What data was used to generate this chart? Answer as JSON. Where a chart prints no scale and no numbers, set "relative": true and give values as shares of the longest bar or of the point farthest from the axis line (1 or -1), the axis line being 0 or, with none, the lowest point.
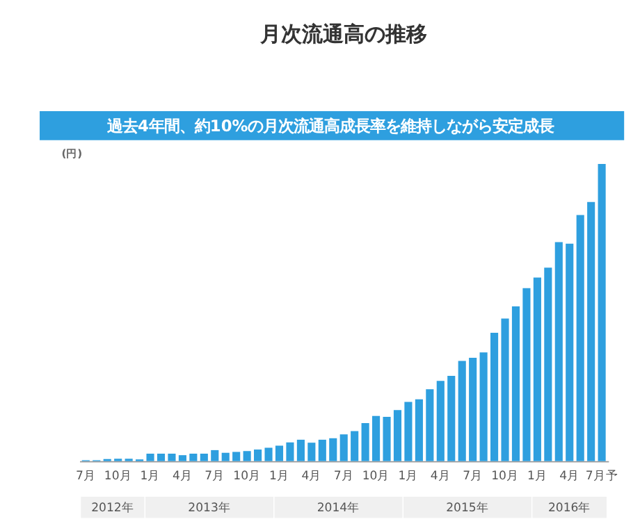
{
  "chart_data": {
    "type": "bar",
    "title": "月次流通高の推移",
    "subtitle": "過去4年間、約10%の月次流通高成長率を維持しながら安定成長",
    "ylabel": "(円)",
    "relative": true,
    "color": "#2e9fdf",
    "categories": [
      "7月",
      null,
      null,
      "10月",
      null,
      null,
      "1月",
      null,
      null,
      "4月",
      null,
      null,
      "7月",
      null,
      null,
      "10月",
      null,
      null,
      "1月",
      null,
      null,
      "4月",
      null,
      null,
      "7月",
      null,
      null,
      "10月",
      null,
      null,
      "1月",
      null,
      null,
      "4月",
      null,
      null,
      "7月",
      null,
      null,
      "10月",
      null,
      null,
      "1月",
      null,
      null,
      "4月",
      null,
      null,
      "7月予"
    ],
    "values": [
      0.003,
      0.003,
      0.007,
      0.008,
      0.008,
      0.006,
      0.025,
      0.025,
      0.025,
      0.02,
      0.025,
      0.025,
      0.037,
      0.028,
      0.031,
      0.034,
      0.039,
      0.045,
      0.052,
      0.063,
      0.072,
      0.062,
      0.072,
      0.077,
      0.09,
      0.101,
      0.128,
      0.152,
      0.149,
      0.172,
      0.199,
      0.208,
      0.242,
      0.27,
      0.287,
      0.337,
      0.348,
      0.366,
      0.432,
      0.48,
      0.521,
      0.582,
      0.618,
      0.651,
      0.737,
      0.732,
      0.828,
      0.872,
      1
    ],
    "annotations": [
      "2012年",
      "2013年",
      "2014年",
      "2015年",
      "2016年"
    ]
  }
}
